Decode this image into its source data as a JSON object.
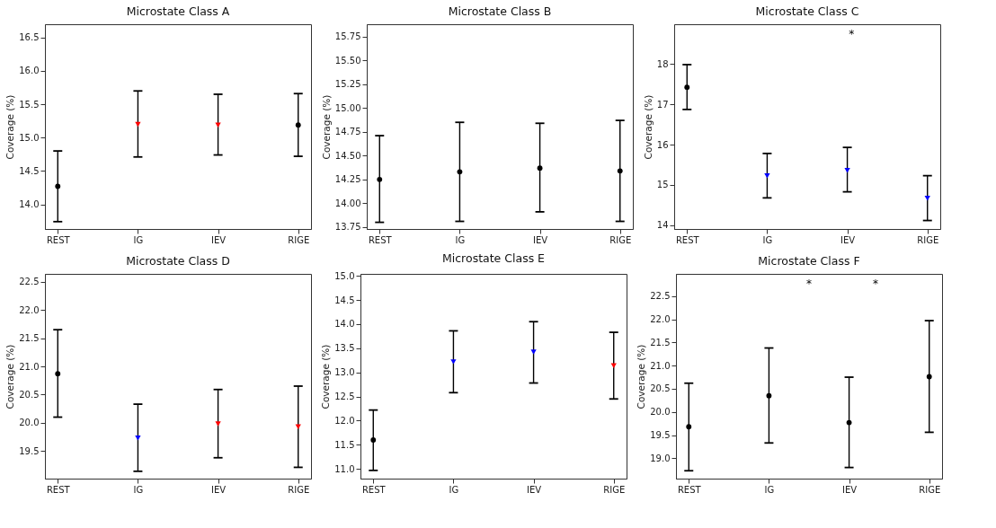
{
  "chart_data": [
    {
      "type": "scatter",
      "title": "Microstate Class A",
      "ylabel": "Coverage (%)",
      "categories": [
        "REST",
        "IG",
        "IEV",
        "RIGE"
      ],
      "ylim": [
        13.63,
        16.7
      ],
      "yticks": [
        {
          "value": 14,
          "label": "14.0"
        },
        14.5,
        {
          "value": 15,
          "label": "15.0"
        },
        15.5,
        {
          "value": 16,
          "label": "16.0"
        },
        16.5
      ],
      "grid": false,
      "series": [
        {
          "color": "#000000",
          "marker": "circle",
          "values": [
            14.27,
            null,
            null,
            15.19
          ],
          "errors": [
            [
              13.74,
              14.8
            ],
            null,
            null,
            [
              14.72,
              15.66
            ]
          ]
        },
        {
          "color": "#ff0000",
          "marker": "triangle",
          "values": [
            null,
            15.2,
            15.19,
            null
          ],
          "errors": [
            null,
            [
              14.71,
              15.7
            ],
            [
              14.74,
              15.65
            ],
            null
          ]
        }
      ]
    },
    {
      "type": "scatter",
      "title": "Microstate Class B",
      "ylabel": "Coverage (%)",
      "categories": [
        "REST",
        "IG",
        "IEV",
        "RIGE"
      ],
      "ylim": [
        13.73,
        15.88
      ],
      "yticks": [
        13.75,
        {
          "value": 14,
          "label": "14.00"
        },
        14.25,
        {
          "value": 14.5,
          "label": "14.50"
        },
        14.75,
        {
          "value": 15,
          "label": "15.00"
        },
        15.25,
        {
          "value": 15.5,
          "label": "15.50"
        },
        15.75
      ],
      "grid": false,
      "series": [
        {
          "color": "#000000",
          "marker": "circle",
          "values": [
            14.25,
            14.33,
            14.37,
            14.34
          ],
          "errors": [
            [
              13.8,
              14.71
            ],
            [
              13.81,
              14.85
            ],
            [
              13.91,
              14.84
            ],
            [
              13.81,
              14.87
            ]
          ]
        }
      ]
    },
    {
      "type": "scatter",
      "title": "Microstate Class C",
      "ylabel": "Coverage (%)",
      "categories": [
        "REST",
        "IG",
        "IEV",
        "RIGE"
      ],
      "ylim": [
        13.91,
        18.98
      ],
      "yticks": [
        14,
        15,
        16,
        17,
        18
      ],
      "grid": false,
      "series": [
        {
          "color": "#000000",
          "marker": "circle",
          "values": [
            17.42,
            null,
            null,
            null
          ],
          "errors": [
            [
              16.87,
              17.98
            ],
            null,
            null,
            null
          ]
        },
        {
          "color": "#0000ff",
          "marker": "triangle",
          "values": [
            null,
            15.23,
            15.36,
            14.67
          ],
          "errors": [
            null,
            [
              14.68,
              15.78
            ],
            [
              14.83,
              15.93
            ],
            [
              14.12,
              15.23
            ]
          ]
        }
      ],
      "annotations": [
        "*"
      ]
    },
    {
      "type": "scatter",
      "title": "Microstate Class D",
      "ylabel": "Coverage (%)",
      "categories": [
        "REST",
        "IG",
        "IEV",
        "RIGE"
      ],
      "ylim": [
        19.01,
        22.64
      ],
      "yticks": [
        19.5,
        {
          "value": 20,
          "label": "20.0"
        },
        20.5,
        {
          "value": 21,
          "label": "21.0"
        },
        21.5,
        {
          "value": 22,
          "label": "22.0"
        },
        22.5
      ],
      "grid": false,
      "series": [
        {
          "color": "#000000",
          "marker": "circle",
          "values": [
            20.87,
            null,
            null,
            null
          ],
          "errors": [
            [
              20.1,
              21.65
            ],
            null,
            null,
            null
          ]
        },
        {
          "color": "#0000ff",
          "marker": "triangle",
          "values": [
            null,
            19.73,
            null,
            null
          ],
          "errors": [
            null,
            [
              19.14,
              20.33
            ],
            null,
            null
          ]
        },
        {
          "color": "#ff0000",
          "marker": "triangle",
          "values": [
            null,
            null,
            19.98,
            19.93
          ],
          "errors": [
            null,
            null,
            [
              19.38,
              20.59
            ],
            [
              19.21,
              20.65
            ]
          ]
        }
      ]
    },
    {
      "type": "scatter",
      "title": "Microstate Class E",
      "ylabel": "Coverage (%)",
      "categories": [
        "REST",
        "IG",
        "IEV",
        "RIGE"
      ],
      "ylim": [
        10.8,
        15.04
      ],
      "yticks": [
        {
          "value": 11,
          "label": "11.0"
        },
        11.5,
        {
          "value": 12,
          "label": "12.0"
        },
        12.5,
        {
          "value": 13,
          "label": "13.0"
        },
        13.5,
        {
          "value": 14,
          "label": "14.0"
        },
        14.5,
        {
          "value": 15,
          "label": "15.0"
        }
      ],
      "grid": false,
      "series": [
        {
          "color": "#000000",
          "marker": "circle",
          "values": [
            11.6,
            null,
            null,
            null
          ],
          "errors": [
            [
              10.97,
              12.22
            ],
            null,
            null,
            null
          ]
        },
        {
          "color": "#0000ff",
          "marker": "triangle",
          "values": [
            null,
            13.22,
            13.42,
            null
          ],
          "errors": [
            null,
            [
              12.58,
              13.86
            ],
            [
              12.78,
              14.05
            ],
            null
          ]
        },
        {
          "color": "#ff0000",
          "marker": "triangle",
          "values": [
            null,
            null,
            null,
            13.14
          ],
          "errors": [
            null,
            null,
            null,
            [
              12.45,
              13.83
            ]
          ]
        }
      ]
    },
    {
      "type": "scatter",
      "title": "Microstate Class F",
      "ylabel": "Coverage (%)",
      "categories": [
        "REST",
        "IG",
        "IEV",
        "RIGE"
      ],
      "ylim": [
        18.56,
        22.98
      ],
      "yticks": [
        {
          "value": 19,
          "label": "19.0"
        },
        19.5,
        {
          "value": 20,
          "label": "20.0"
        },
        20.5,
        {
          "value": 21,
          "label": "21.0"
        },
        21.5,
        {
          "value": 22,
          "label": "22.0"
        },
        22.5
      ],
      "grid": false,
      "series": [
        {
          "color": "#000000",
          "marker": "circle",
          "values": [
            19.68,
            20.35,
            19.77,
            20.76
          ],
          "errors": [
            [
              18.73,
              20.62
            ],
            [
              19.33,
              21.38
            ],
            [
              18.8,
              20.75
            ],
            [
              19.56,
              21.97
            ]
          ]
        }
      ],
      "annotations": [
        "*",
        "*"
      ]
    }
  ]
}
